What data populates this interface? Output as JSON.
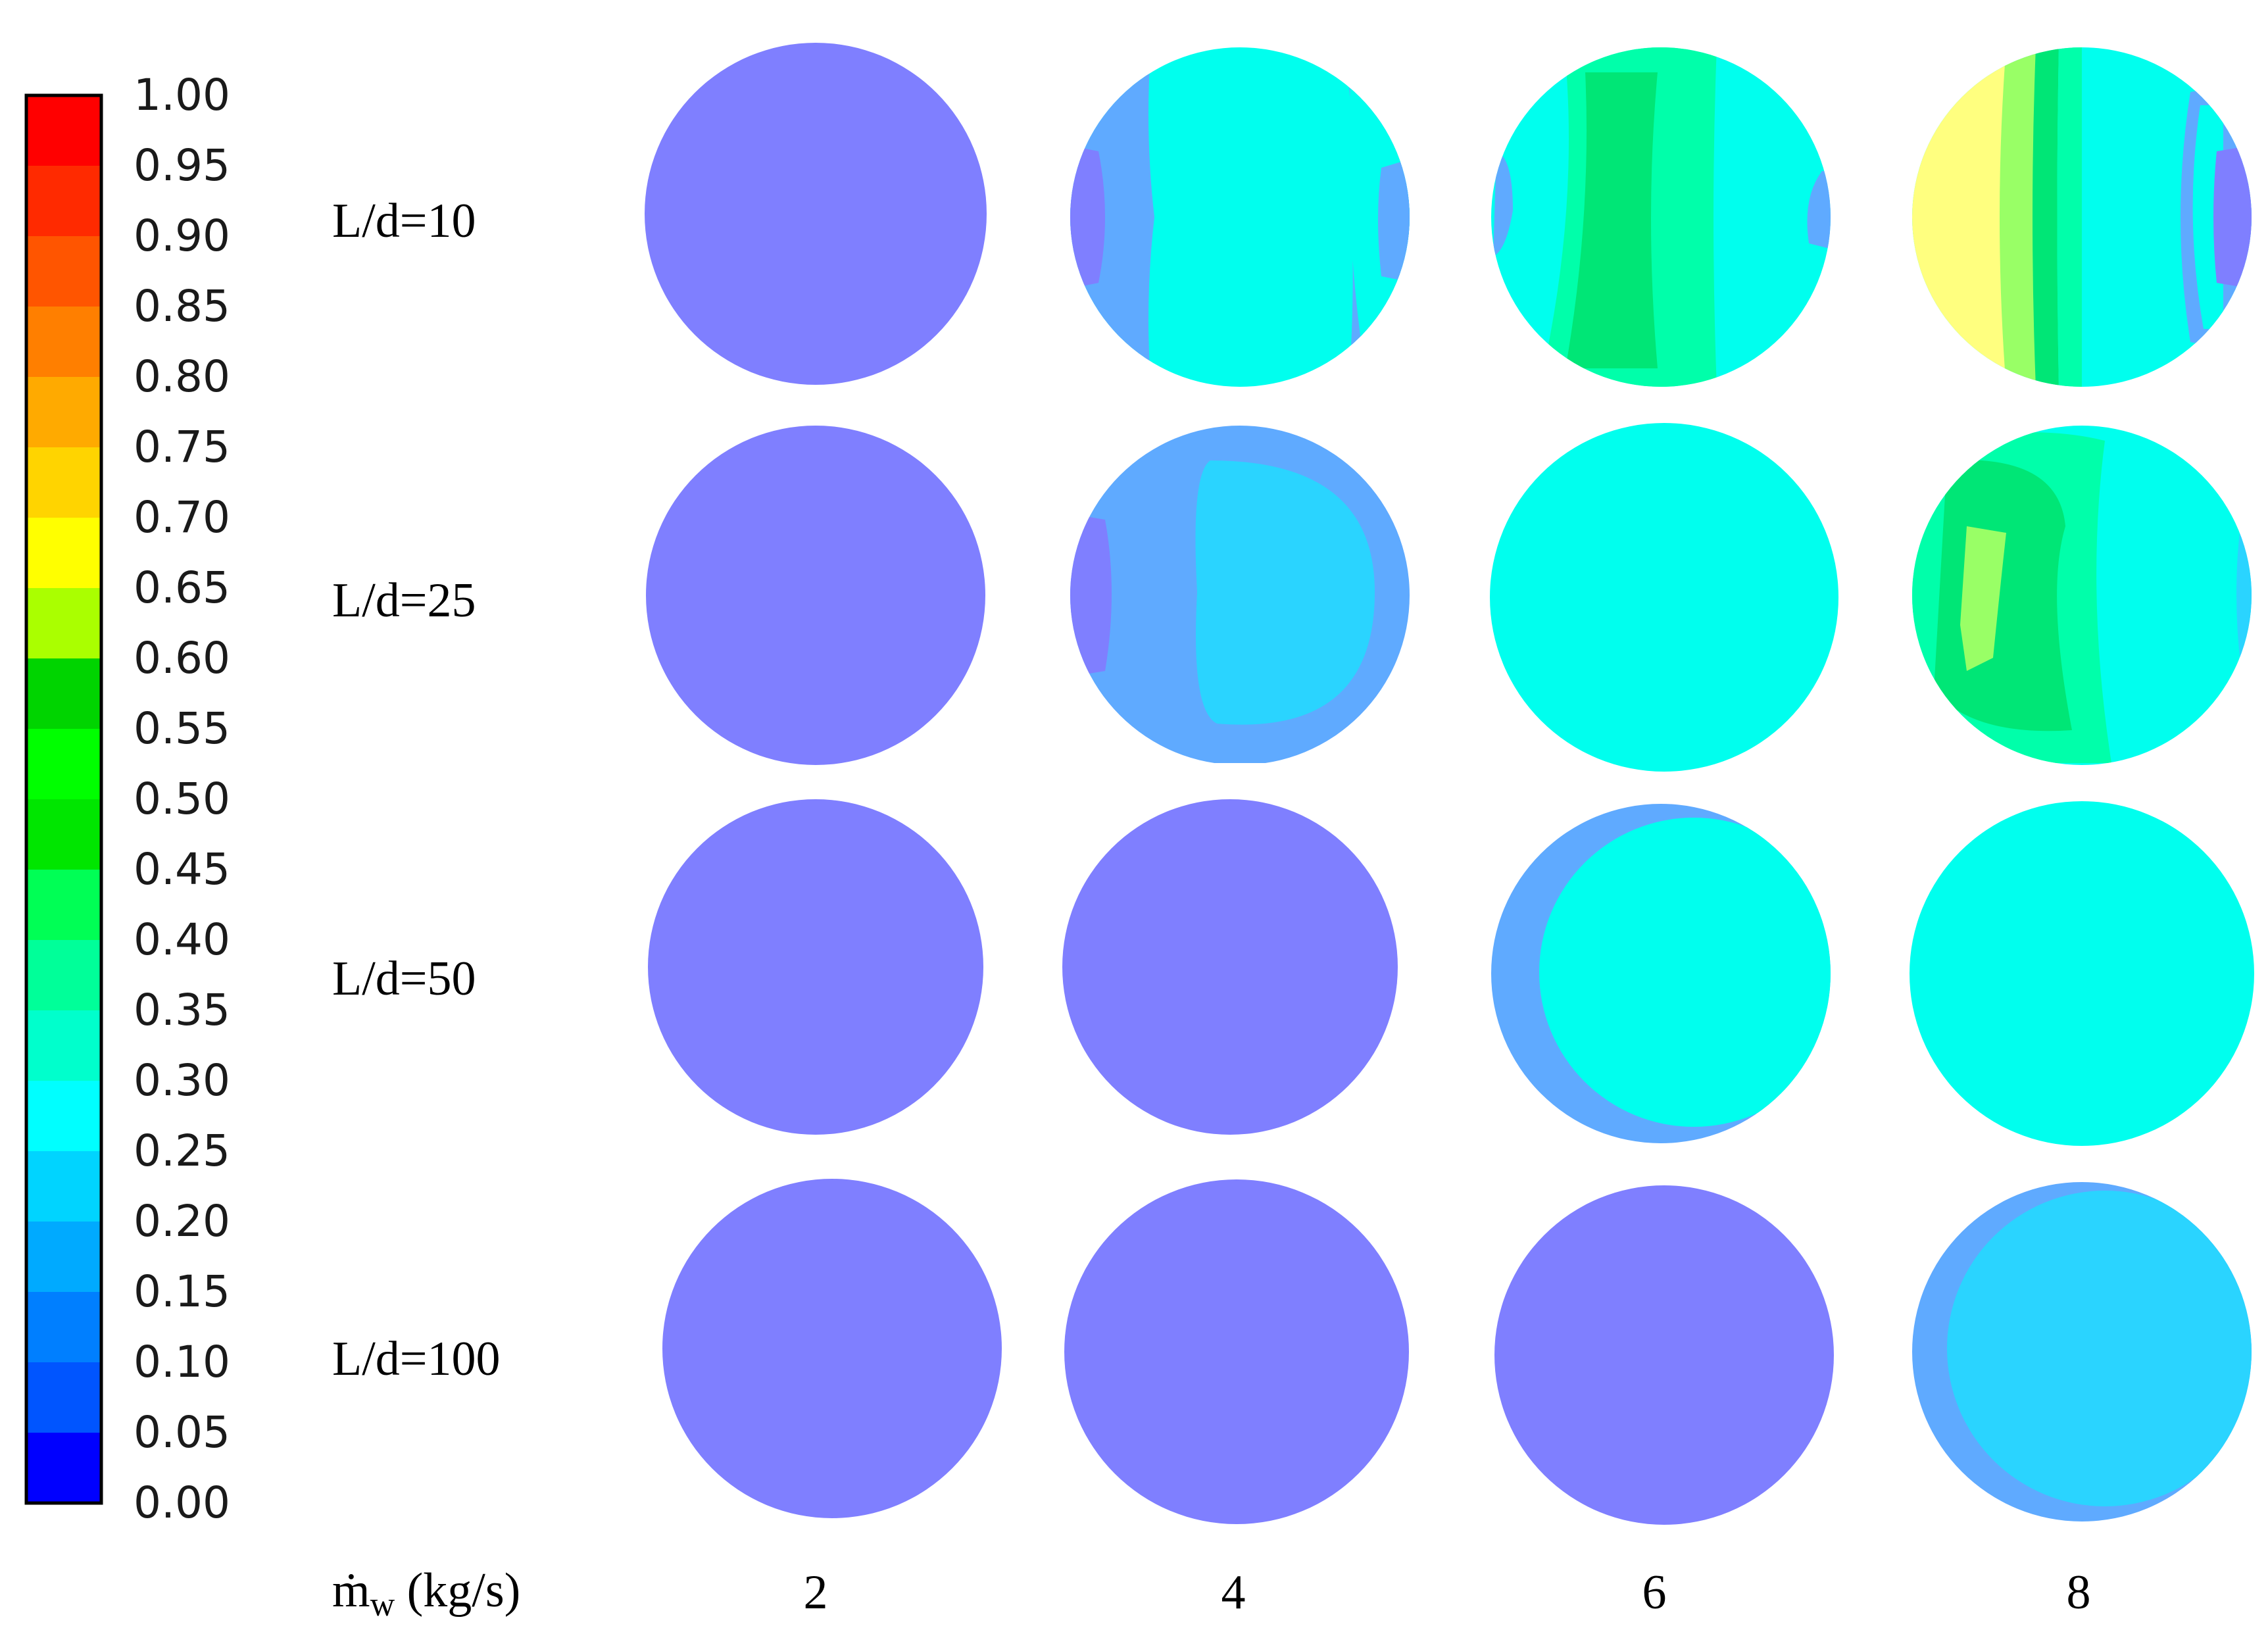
{
  "colorbar": {
    "ticks": [
      "1.00",
      "0.95",
      "0.90",
      "0.85",
      "0.80",
      "0.75",
      "0.70",
      "0.65",
      "0.60",
      "0.55",
      "0.50",
      "0.45",
      "0.40",
      "0.35",
      "0.30",
      "0.25",
      "0.20",
      "0.15",
      "0.10",
      "0.05",
      "0.00"
    ],
    "band_colors": [
      "#ff0000",
      "#ff2a00",
      "#ff5500",
      "#ff7f00",
      "#ffaa00",
      "#ffd400",
      "#ffff00",
      "#aaff00",
      "#00d400",
      "#00ff00",
      "#00e600",
      "#00ff55",
      "#00ff99",
      "#00ffcc",
      "#00ffff",
      "#00d4ff",
      "#00aaff",
      "#007fff",
      "#0055ff",
      "#0000ff"
    ]
  },
  "rows": [
    {
      "label": "L/d=10"
    },
    {
      "label": "L/d=25"
    },
    {
      "label": "L/d=50"
    },
    {
      "label": "L/d=100"
    }
  ],
  "x_axis": {
    "symbol": "ṁ",
    "subscript": "w",
    "unit": " (kg/s)",
    "values": [
      "2",
      "4",
      "6",
      "8"
    ]
  },
  "palette": {
    "base": "#7f7fff",
    "light_blue": "#5faaff",
    "sky": "#2ad4ff",
    "cyan": "#00ffee",
    "aqua_green": "#00ffaa",
    "green": "#00e676",
    "yellow_green": "#99ff66",
    "yellow": "#ffff7f"
  }
}
